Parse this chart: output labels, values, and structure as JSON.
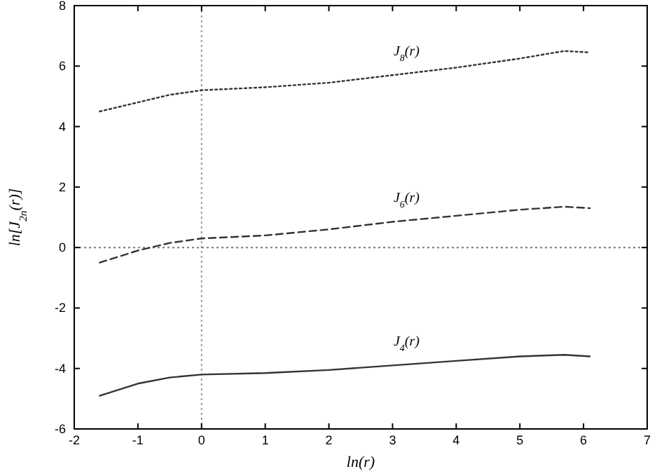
{
  "chart_data": {
    "type": "line",
    "xlabel": "ln(r)",
    "ylabel": "ln[J$_{2n}$(r)]",
    "xlim": [
      -2,
      7
    ],
    "ylim": [
      -6,
      8
    ],
    "xticks": [
      -2,
      -1,
      0,
      1,
      2,
      3,
      4,
      5,
      6,
      7
    ],
    "yticks": [
      -6,
      -4,
      -2,
      0,
      2,
      4,
      6,
      8
    ],
    "grid": false,
    "marker": "none",
    "x": [
      -1.6,
      -1,
      -0.5,
      0,
      1,
      2,
      3,
      4,
      5,
      5.7,
      6.1
    ],
    "series": [
      {
        "name": "J$_{8}$(r)",
        "color": "#333333",
        "line_style": "dotted",
        "values": [
          4.5,
          4.8,
          5.05,
          5.2,
          5.3,
          5.45,
          5.7,
          5.95,
          6.25,
          6.5,
          6.45
        ]
      },
      {
        "name": "J$_{6}$(r)",
        "color": "#333333",
        "line_style": "dashed",
        "values": [
          -0.5,
          -0.1,
          0.15,
          0.3,
          0.4,
          0.6,
          0.85,
          1.05,
          1.25,
          1.35,
          1.3
        ]
      },
      {
        "name": "J$_{4}$(r)",
        "color": "#333333",
        "line_style": "solid",
        "values": [
          -4.9,
          -4.5,
          -4.3,
          -4.2,
          -4.15,
          -4.05,
          -3.9,
          -3.75,
          -3.6,
          -3.55,
          -3.6
        ]
      }
    ],
    "ref_lines": [
      {
        "axis": "x",
        "value": 0,
        "line_style": "dotted",
        "color": "#999999"
      },
      {
        "axis": "y",
        "value": 0,
        "line_style": "dotted",
        "color": "#777777"
      }
    ]
  }
}
